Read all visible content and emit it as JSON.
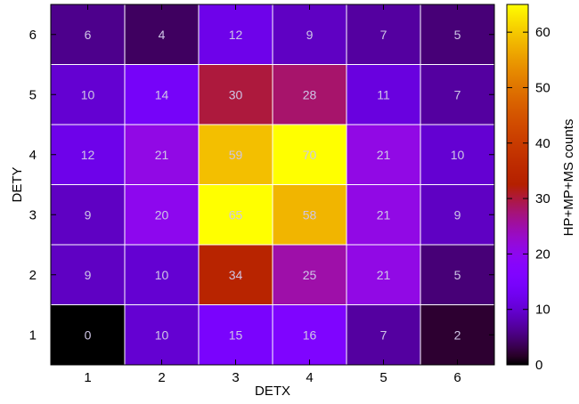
{
  "chart_data": {
    "type": "heatmap",
    "title": "",
    "xlabel": "DETX",
    "ylabel": "DETY",
    "colorbar_label": "HP+MP+MS counts",
    "x_categories": [
      "1",
      "2",
      "3",
      "4",
      "5",
      "6"
    ],
    "y_categories": [
      "1",
      "2",
      "3",
      "4",
      "5",
      "6"
    ],
    "values_by_row": [
      [
        0,
        10,
        15,
        16,
        7,
        2
      ],
      [
        9,
        10,
        34,
        25,
        21,
        5
      ],
      [
        9,
        20,
        65,
        58,
        21,
        9
      ],
      [
        12,
        21,
        59,
        70,
        21,
        10
      ],
      [
        10,
        14,
        30,
        28,
        11,
        7
      ],
      [
        6,
        4,
        12,
        9,
        7,
        5
      ]
    ],
    "color_range": [
      0,
      65
    ],
    "colorbar_ticks": [
      "0",
      "10",
      "20",
      "30",
      "40",
      "50",
      "60"
    ],
    "colormap": "gnuplot palette rgbformulae 7,5,15 (black-purple-red-yellow)",
    "value_label_color": "#cfc6e6",
    "grid_line_color": "#ffffff",
    "grid": true,
    "colorbar_position": "right"
  }
}
